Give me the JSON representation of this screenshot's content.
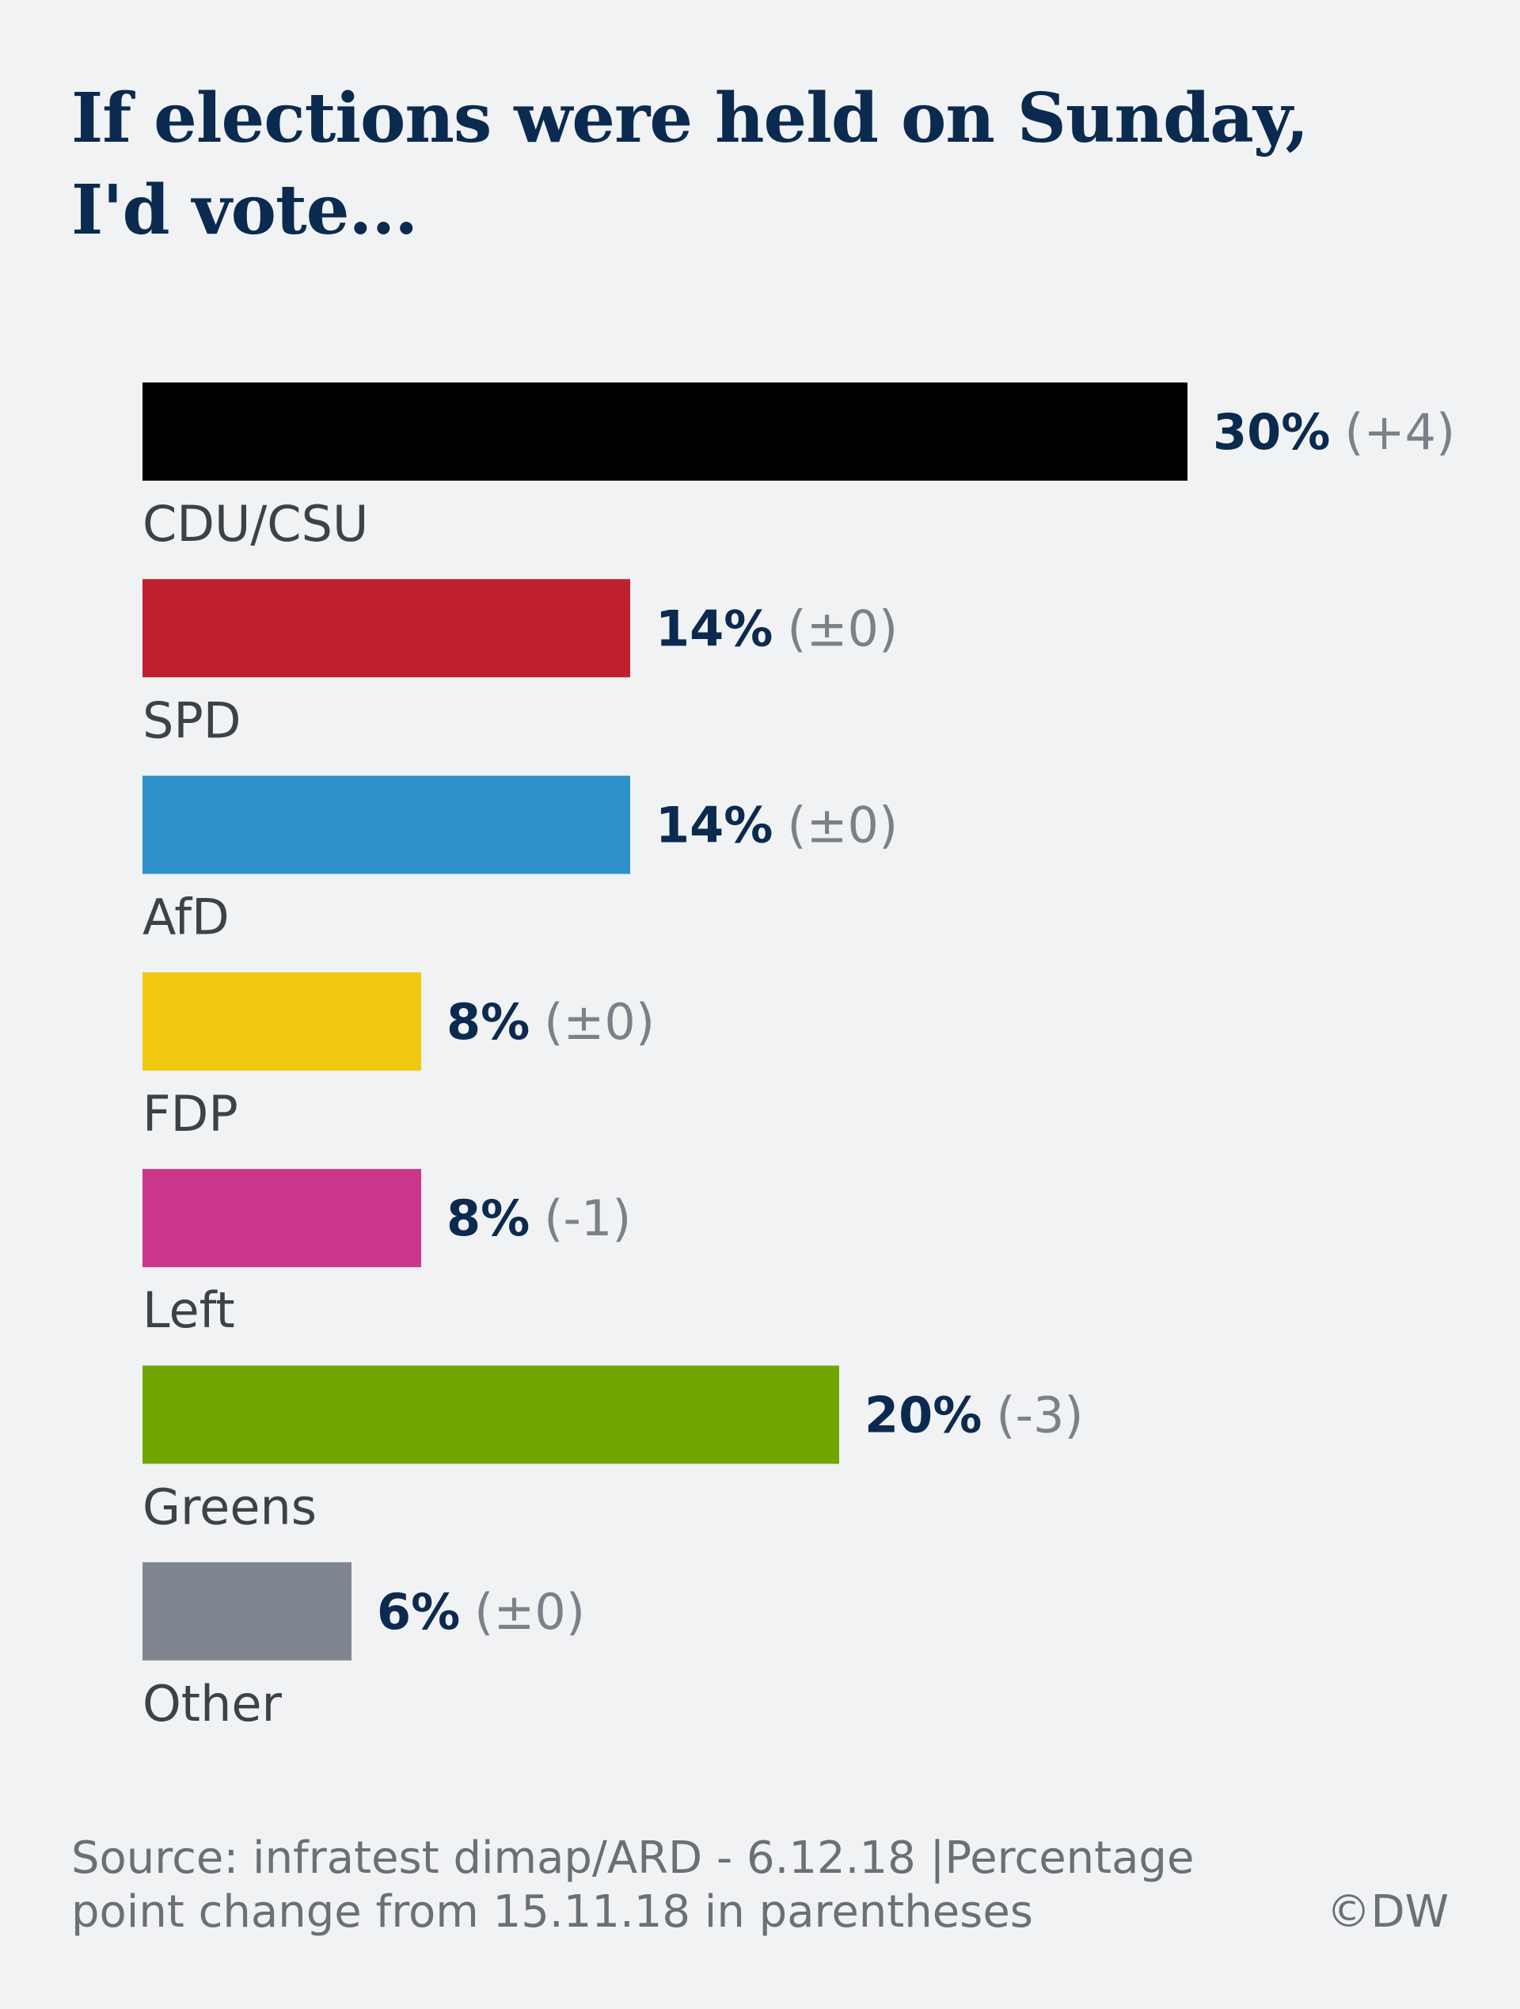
{
  "title": {
    "line1": "If elections were held on Sunday,",
    "line2": "I'd vote..."
  },
  "chart_data": {
    "type": "bar",
    "orientation": "horizontal",
    "categories": [
      "CDU/CSU",
      "SPD",
      "AfD",
      "FDP",
      "Left",
      "Greens",
      "Other"
    ],
    "values": [
      30,
      14,
      14,
      8,
      8,
      20,
      6
    ],
    "value_labels": [
      "30%",
      "14%",
      "14%",
      "8%",
      "8%",
      "20%",
      "6%"
    ],
    "changes": [
      "(+4)",
      "(±0)",
      "(±0)",
      "(±0)",
      "(-1)",
      "(-3)",
      "(±0)"
    ],
    "colors": [
      "#000000",
      "#be202e",
      "#2e91c9",
      "#f1c811",
      "#cb368a",
      "#70a600",
      "#7f868f"
    ],
    "unit": "%",
    "xlim": [
      0,
      30
    ],
    "grid": false,
    "legend": "none"
  },
  "footer": {
    "source_line1": "Source: infratest dimap/ARD - 6.12.18 |Percentage",
    "source_line2": "point change from 15.11.18 in parentheses",
    "credit": "©DW"
  }
}
